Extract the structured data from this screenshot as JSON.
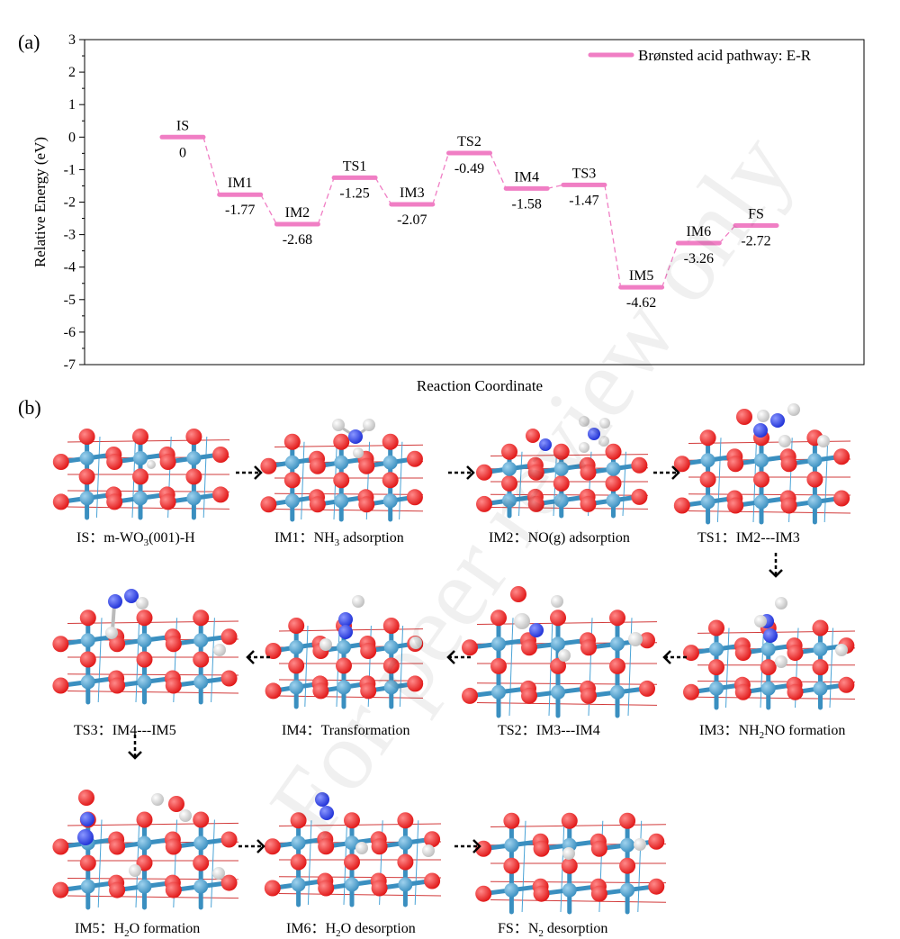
{
  "panel_a_label": "(a)",
  "panel_b_label": "(b)",
  "watermark_text": "For peer review only",
  "chart_data": {
    "type": "energy-profile",
    "title": "",
    "xlabel": "Reaction Coordinate",
    "ylabel": "Relative Energy (eV)",
    "ylim": [
      -7,
      3
    ],
    "yticks": [
      3,
      2,
      1,
      0,
      -1,
      -2,
      -3,
      -4,
      -5,
      -6,
      -7
    ],
    "grid": false,
    "legend": {
      "placement": "top-right",
      "label": "Brønsted acid pathway: E-R",
      "color": "#f07ec4"
    },
    "series": [
      {
        "name": "Brønsted acid pathway: E-R",
        "color": "#f07ec4",
        "states": [
          {
            "label": "IS",
            "energy": 0,
            "value_text": "0"
          },
          {
            "label": "IM1",
            "energy": -1.77,
            "value_text": "-1.77"
          },
          {
            "label": "IM2",
            "energy": -2.68,
            "value_text": "-2.68"
          },
          {
            "label": "TS1",
            "energy": -1.25,
            "value_text": "-1.25"
          },
          {
            "label": "IM3",
            "energy": -2.07,
            "value_text": "-2.07"
          },
          {
            "label": "TS2",
            "energy": -0.49,
            "value_text": "-0.49"
          },
          {
            "label": "IM4",
            "energy": -1.58,
            "value_text": "-1.58"
          },
          {
            "label": "TS3",
            "energy": -1.47,
            "value_text": "-1.47"
          },
          {
            "label": "IM5",
            "energy": -4.62,
            "value_text": "-4.62"
          },
          {
            "label": "IM6",
            "energy": -3.26,
            "value_text": "-3.26"
          },
          {
            "label": "FS",
            "energy": -2.72,
            "value_text": "-2.72"
          }
        ]
      }
    ]
  },
  "structures": [
    {
      "id": "IS",
      "prefix": "IS：",
      "parts": [
        [
          "m-WO",
          ""
        ],
        [
          "3",
          "sub"
        ],
        [
          "(001)-H",
          ""
        ]
      ]
    },
    {
      "id": "IM1",
      "prefix": "IM1：",
      "parts": [
        [
          "NH",
          ""
        ],
        [
          "3",
          "sub"
        ],
        [
          " adsorption",
          ""
        ]
      ]
    },
    {
      "id": "IM2",
      "prefix": "IM2：",
      "parts": [
        [
          "NO(g) adsorption",
          ""
        ]
      ]
    },
    {
      "id": "TS1",
      "prefix": "TS1：",
      "parts": [
        [
          "IM2---IM3",
          ""
        ]
      ]
    },
    {
      "id": "TS3",
      "prefix": "TS3：",
      "parts": [
        [
          "IM4---IM5",
          ""
        ]
      ]
    },
    {
      "id": "IM4",
      "prefix": "IM4：",
      "parts": [
        [
          "Transformation",
          ""
        ]
      ]
    },
    {
      "id": "TS2",
      "prefix": "TS2：",
      "parts": [
        [
          "IM3---IM4",
          ""
        ]
      ]
    },
    {
      "id": "IM3",
      "prefix": "IM3：",
      "parts": [
        [
          "NH",
          ""
        ],
        [
          "2",
          "sub"
        ],
        [
          "NO formation",
          ""
        ]
      ]
    },
    {
      "id": "IM5",
      "prefix": "IM5：",
      "parts": [
        [
          "H",
          ""
        ],
        [
          "2",
          "sub"
        ],
        [
          "O formation",
          ""
        ]
      ]
    },
    {
      "id": "IM6",
      "prefix": "IM6：",
      "parts": [
        [
          "H",
          ""
        ],
        [
          "2",
          "sub"
        ],
        [
          "O desorption",
          ""
        ]
      ]
    },
    {
      "id": "FS",
      "prefix": "FS：",
      "parts": [
        [
          "N",
          ""
        ],
        [
          "2",
          "sub"
        ],
        [
          " desorption",
          ""
        ]
      ]
    }
  ],
  "atom_colors": {
    "W": "#3a8fc0",
    "O": "#e01414",
    "N": "#1d2fd6",
    "H": "#f2f2f2",
    "bond": "#3a8fc0"
  }
}
